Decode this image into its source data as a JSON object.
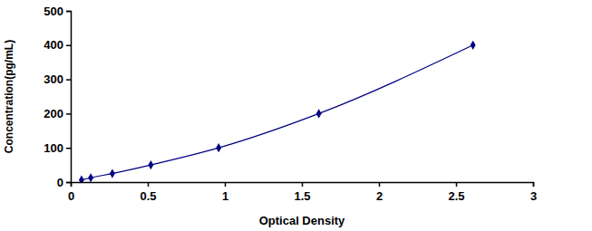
{
  "chart_data": {
    "type": "line",
    "xlabel": "Optical Density",
    "ylabel": "Concentration(pg/mL)",
    "x": [
      0.07,
      0.13,
      0.27,
      0.52,
      0.96,
      1.61,
      2.61
    ],
    "values": [
      6.25,
      12.5,
      25,
      50,
      100,
      200,
      400
    ],
    "color": "#000080",
    "marker": "diamond",
    "line_style": "smooth",
    "xlim": [
      0,
      3
    ],
    "xticks": [
      0,
      0.5,
      1,
      1.5,
      2,
      2.5,
      3
    ],
    "ylim": [
      0,
      500
    ],
    "yticks": [
      0,
      100,
      200,
      300,
      400,
      500
    ],
    "grid": false
  }
}
